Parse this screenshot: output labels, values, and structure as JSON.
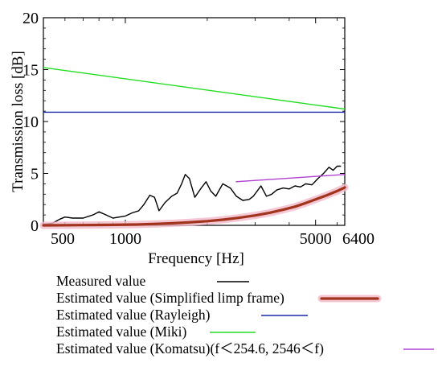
{
  "chart_data": {
    "type": "line",
    "title": "",
    "xlabel": "Frequency [Hz]",
    "ylabel": "Transmission loss [dB]",
    "xscale": "log",
    "xlim": [
      500,
      6400
    ],
    "ylim": [
      0,
      20
    ],
    "grid": false,
    "legend_placement": "below",
    "x_ticks": [
      {
        "value": 500,
        "label": "500"
      },
      {
        "value": 1000,
        "label": "1000"
      },
      {
        "value": 5000,
        "label": "5000"
      },
      {
        "value": 6400,
        "label": "6400"
      }
    ],
    "y_ticks": [
      {
        "value": 0,
        "label": "0"
      },
      {
        "value": 5,
        "label": "5"
      },
      {
        "value": 10,
        "label": "10"
      },
      {
        "value": 15,
        "label": "15"
      },
      {
        "value": 20,
        "label": "20"
      }
    ],
    "series": [
      {
        "name": "Measured value",
        "color": "#000000",
        "style": "thin",
        "x": [
          500,
          540,
          575,
          600,
          640,
          700,
          760,
          800,
          850,
          900,
          950,
          1000,
          1060,
          1120,
          1170,
          1230,
          1280,
          1330,
          1400,
          1480,
          1550,
          1610,
          1660,
          1720,
          1800,
          1900,
          1980,
          2060,
          2150,
          2280,
          2430,
          2560,
          2700,
          2850,
          2950,
          3050,
          3150,
          3300,
          3450,
          3600,
          3800,
          4000,
          4200,
          4400,
          4600,
          4850,
          5100,
          5350,
          5600,
          5800,
          6000,
          6200
        ],
        "y": [
          0.1,
          0.2,
          0.6,
          0.8,
          0.7,
          0.7,
          1.0,
          1.3,
          1.0,
          0.7,
          0.8,
          0.9,
          1.2,
          1.4,
          2.0,
          2.9,
          2.7,
          1.4,
          2.2,
          2.8,
          3.1,
          4.0,
          4.9,
          4.5,
          2.7,
          3.6,
          4.2,
          3.3,
          2.8,
          4.0,
          3.6,
          2.8,
          2.4,
          2.5,
          2.8,
          3.3,
          3.8,
          2.8,
          3.0,
          3.4,
          3.6,
          3.5,
          3.8,
          3.7,
          4.0,
          3.9,
          4.5,
          5.0,
          5.6,
          5.3,
          5.7,
          5.7
        ]
      },
      {
        "name": "Estimated value (Simplified limp frame)",
        "color": "#a0341c",
        "style": "thick",
        "x": [
          500,
          700,
          900,
          1100,
          1300,
          1500,
          1700,
          2000,
          2300,
          2600,
          3000,
          3400,
          3800,
          4200,
          4600,
          5000,
          5500,
          6000,
          6400
        ],
        "y": [
          0.0,
          0.02,
          0.05,
          0.08,
          0.14,
          0.2,
          0.28,
          0.4,
          0.55,
          0.72,
          0.95,
          1.22,
          1.5,
          1.8,
          2.15,
          2.5,
          2.9,
          3.3,
          3.65
        ]
      },
      {
        "name": "Estimated value (Rayleigh)",
        "color": "#1a2aa8",
        "style": "thin",
        "x": [
          500,
          6400
        ],
        "y": [
          10.9,
          10.9
        ]
      },
      {
        "name": "Estimated value (Miki)",
        "color": "#22dd22",
        "style": "thin",
        "x": [
          500,
          6400
        ],
        "y": [
          15.2,
          11.2
        ]
      },
      {
        "name": "Estimated value (Komatsu)(f＜254.6,  2546＜f)",
        "color": "#b040d0",
        "style": "thin",
        "x": [
          2546,
          6400
        ],
        "y": [
          4.2,
          4.9
        ]
      }
    ]
  }
}
